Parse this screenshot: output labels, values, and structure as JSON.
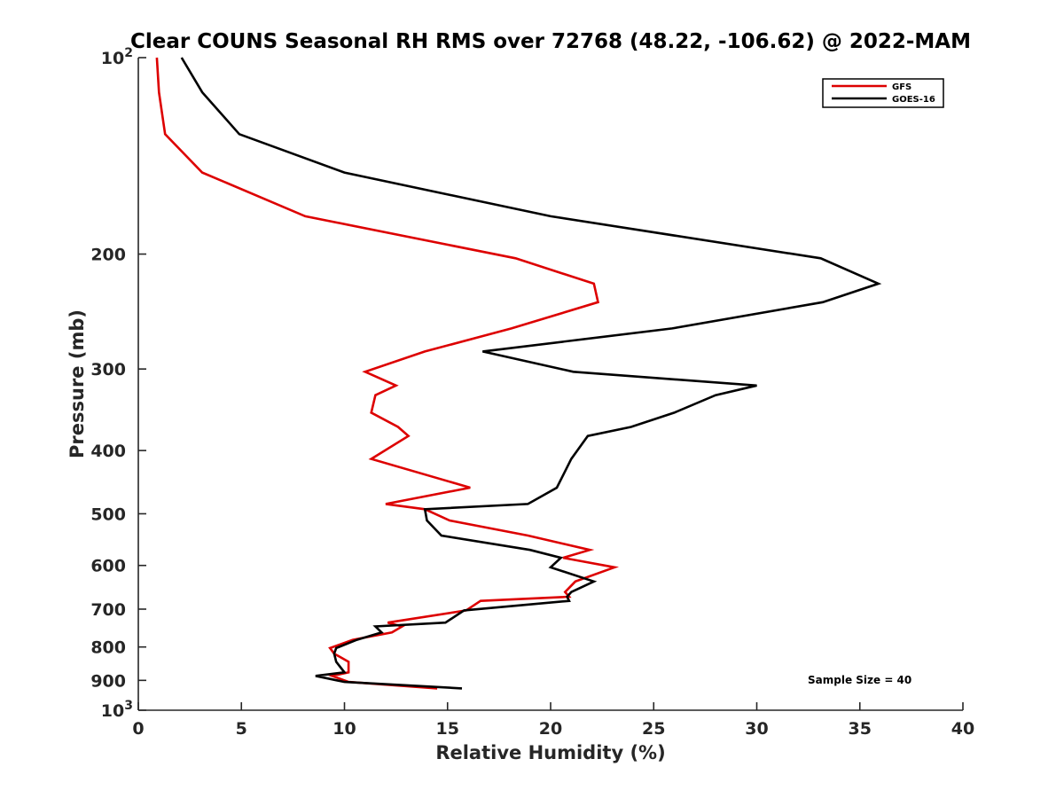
{
  "chart_data": {
    "type": "line",
    "title": "Clear COUNS Seasonal RH RMS over 72768 (48.22, -106.62) @ 2022-MAM",
    "xlabel": "Relative Humidity (%)",
    "ylabel": "Pressure (mb)",
    "xlim": [
      0,
      40
    ],
    "ylim": [
      100,
      1000
    ],
    "yscale": "log",
    "y_reversed": true,
    "x_ticks": [
      0,
      5,
      10,
      15,
      20,
      25,
      30,
      35,
      40
    ],
    "x_tick_labels": [
      "0",
      "5",
      "10",
      "15",
      "20",
      "25",
      "30",
      "35",
      "40"
    ],
    "y_ticks": [
      100,
      200,
      300,
      400,
      500,
      600,
      700,
      800,
      900,
      1000
    ],
    "y_tick_labels": [
      {
        "base": "10",
        "exp": "2"
      },
      {
        "base": "200",
        "exp": ""
      },
      {
        "base": "300",
        "exp": ""
      },
      {
        "base": "400",
        "exp": ""
      },
      {
        "base": "500",
        "exp": ""
      },
      {
        "base": "600",
        "exp": ""
      },
      {
        "base": "700",
        "exp": ""
      },
      {
        "base": "800",
        "exp": ""
      },
      {
        "base": "900",
        "exp": ""
      },
      {
        "base": "10",
        "exp": "3"
      }
    ],
    "legend_position": "top-right",
    "grid": false,
    "annotation": "Sample Size = 40",
    "series": [
      {
        "name": "GFS",
        "color": "#dd0000",
        "x": [
          0.9,
          1.0,
          1.3,
          3.1,
          8.1,
          18.3,
          22.1,
          22.3,
          18.1,
          13.9,
          11.0,
          12.5,
          11.5,
          11.3,
          12.6,
          13.1,
          11.3,
          16.1,
          12.0,
          13.9,
          15.1,
          18.9,
          21.9,
          20.6,
          23.1,
          21.2,
          20.7,
          20.9,
          16.6,
          15.9,
          12.1,
          12.8,
          12.3,
          10.4,
          9.3,
          9.5,
          10.2,
          10.2,
          9.4,
          10.2,
          14.5
        ],
        "y": [
          100,
          113,
          131,
          150,
          175,
          203,
          222,
          237,
          260,
          282,
          303,
          318,
          329,
          350,
          368,
          380,
          412,
          456,
          483,
          492,
          512,
          540,
          568,
          584,
          604,
          635,
          659,
          670,
          680,
          703,
          734,
          744,
          760,
          780,
          803,
          819,
          843,
          875,
          886,
          905,
          926
        ]
      },
      {
        "name": "GOES-16",
        "color": "#000000",
        "x": [
          2.1,
          3.1,
          4.9,
          10.0,
          20.0,
          33.1,
          35.9,
          33.2,
          25.9,
          16.7,
          21.1,
          30.0,
          28.0,
          26.0,
          23.9,
          21.8,
          21.0,
          20.3,
          18.9,
          13.9,
          14.0,
          14.7,
          19.0,
          20.5,
          20.0,
          22.1,
          21.0,
          20.8,
          20.9,
          15.8,
          14.9,
          11.5,
          11.8,
          10.6,
          9.6,
          9.5,
          9.6,
          10.0,
          8.6,
          10.0,
          15.7
        ],
        "y": [
          100,
          113,
          131,
          150,
          175,
          203,
          222,
          237,
          260,
          282,
          303,
          318,
          329,
          350,
          368,
          380,
          412,
          456,
          483,
          492,
          512,
          540,
          568,
          584,
          604,
          635,
          659,
          670,
          680,
          703,
          734,
          744,
          760,
          780,
          803,
          819,
          843,
          875,
          886,
          905,
          926
        ]
      }
    ]
  }
}
